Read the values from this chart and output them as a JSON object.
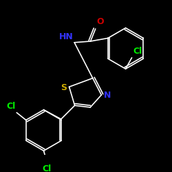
{
  "bg_color": "#000000",
  "bond_color": "#ffffff",
  "atom_colors": {
    "Cl_top": "#00ee00",
    "NH": "#3333ff",
    "O": "#cc0000",
    "S": "#ccaa00",
    "N": "#3333ff",
    "Cl_left": "#00ee00",
    "Cl_bottom": "#00ee00"
  },
  "atom_labels": {
    "Cl_top": "Cl",
    "NH": "HN",
    "O": "O",
    "S": "S",
    "N": "N",
    "Cl_left": "Cl",
    "Cl_bottom": "Cl"
  },
  "font_size": 8,
  "figsize": [
    2.5,
    2.5
  ],
  "dpi": 100
}
